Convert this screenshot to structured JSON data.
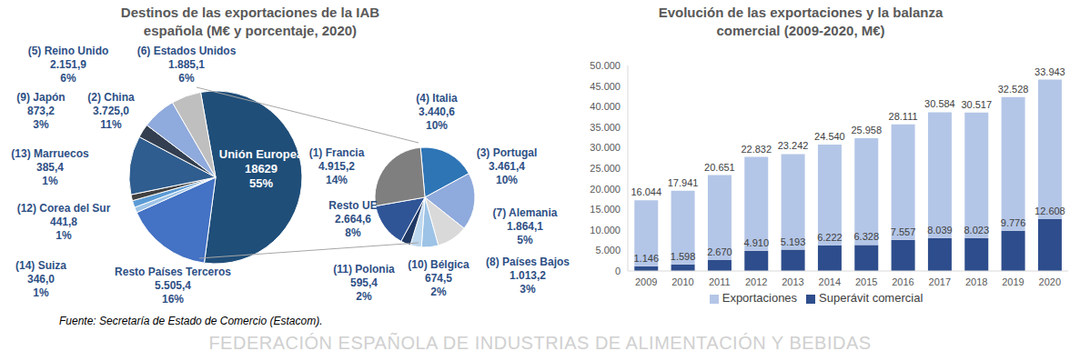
{
  "chart_data": [
    {
      "type": "pie",
      "title": "Destinos de las exportaciones de la IAB española (M€ y porcentaje, 2020)",
      "categories": [
        "Unión Europea",
        "Resto Países Terceros",
        "(14) Suiza",
        "(12) Corea del Sur",
        "(13) Marruecos",
        "(2) China",
        "(9) Japón",
        "(5) Reino Unido",
        "(6) Estados Unidos"
      ],
      "values": [
        18629,
        5505.4,
        346.0,
        441.8,
        385.4,
        3725.0,
        873.2,
        2151.9,
        1885.1
      ],
      "value_labels": [
        "18629",
        "5.505,4",
        "346,0",
        "441,8",
        "385,4",
        "3.725,0",
        "873,2",
        "2.151,9",
        "1.885,1"
      ],
      "percents": [
        55,
        16,
        1,
        1,
        1,
        11,
        3,
        6,
        6
      ],
      "percent_labels": [
        "55%",
        "16%",
        "1%",
        "1%",
        "1%",
        "11%",
        "3%",
        "6%",
        "6%"
      ],
      "colors": [
        "#1f4e79",
        "#4472c4",
        "#9dc3e6",
        "#5b9bd5",
        "#404040",
        "#2f5d8f",
        "#333f50",
        "#8faadc",
        "#bfbfbf"
      ],
      "data_labels": true
    },
    {
      "type": "pie",
      "categories": [
        "(4) Italia",
        "(3) Portugal",
        "(7) Alemania",
        "(8) Países Bajos",
        "(10) Bélgica",
        "(11) Polonia",
        "Resto UE",
        "(1) Francia"
      ],
      "values": [
        3440.6,
        3461.4,
        1864.1,
        1013.2,
        674.5,
        595.4,
        2664.6,
        4915.2
      ],
      "value_labels": [
        "3.440,6",
        "3.461,4",
        "1.864,1",
        "1.013,2",
        "674,5",
        "595,4",
        "2.664,6",
        "4.915,2"
      ],
      "percents": [
        10,
        10,
        5,
        3,
        2,
        2,
        8,
        14
      ],
      "percent_labels": [
        "10%",
        "10%",
        "5%",
        "3%",
        "2%",
        "2%",
        "8%",
        "14%"
      ],
      "colors": [
        "#2e75b6",
        "#8faadc",
        "#d9d9d9",
        "#9dc3e6",
        "#bdd7ee",
        "#1f3864",
        "#2f5597",
        "#7f7f7f"
      ],
      "data_labels": true
    },
    {
      "type": "bar",
      "title": "Evolución de las exportaciones y la balanza comercial (2009-2020, M€)",
      "categories": [
        "2009",
        "2010",
        "2011",
        "2012",
        "2013",
        "2014",
        "2015",
        "2016",
        "2017",
        "2018",
        "2019",
        "2020"
      ],
      "series": [
        {
          "name": "Superávit comercial",
          "color": "#2e4d8c",
          "values": [
            1146,
            1598,
            2670,
            4910,
            5193,
            6222,
            6328,
            7557,
            8039,
            8023,
            9776,
            12608
          ],
          "value_labels": [
            "1.146",
            "1.598",
            "2.670",
            "4.910",
            "5.193",
            "6.222",
            "6.328",
            "7.557",
            "8.039",
            "8.023",
            "9.776",
            "12.608"
          ]
        },
        {
          "name": "Exportaciones",
          "color": "#b4c6e7",
          "values": [
            16044,
            17941,
            20651,
            22832,
            23242,
            24540,
            25958,
            28111,
            30584,
            30517,
            32528,
            33943
          ],
          "value_labels": [
            "16.044",
            "17.941",
            "20.651",
            "22.832",
            "23.242",
            "24.540",
            "25.958",
            "28.111",
            "30.584",
            "30.517",
            "32.528",
            "33.943"
          ]
        }
      ],
      "stacked": true,
      "data_labels": true,
      "grid": false,
      "legend": "bottom",
      "ylim": [
        0,
        50000
      ],
      "yticks": [
        0,
        {
          "value": 5000,
          "label": "5.000"
        },
        {
          "value": 10000,
          "label": "10.000"
        },
        {
          "value": 15000,
          "label": "15.000"
        },
        {
          "value": 20000,
          "label": "20.000"
        },
        {
          "value": 25000,
          "label": "25.000"
        },
        {
          "value": 30000,
          "label": "30.000"
        },
        {
          "value": 35000,
          "label": "35.000"
        },
        {
          "value": 40000,
          "label": "40.000"
        },
        {
          "value": 45000,
          "label": "45.000"
        },
        {
          "value": 50000,
          "label": "50.000"
        }
      ]
    }
  ],
  "source": "Fuente: Secretaría de Estado de Comercio (Estacom).",
  "footer": "FEDERACIÓN ESPAÑOLA DE INDUSTRIAS DE ALIMENTACIÓN Y BEBIDAS"
}
